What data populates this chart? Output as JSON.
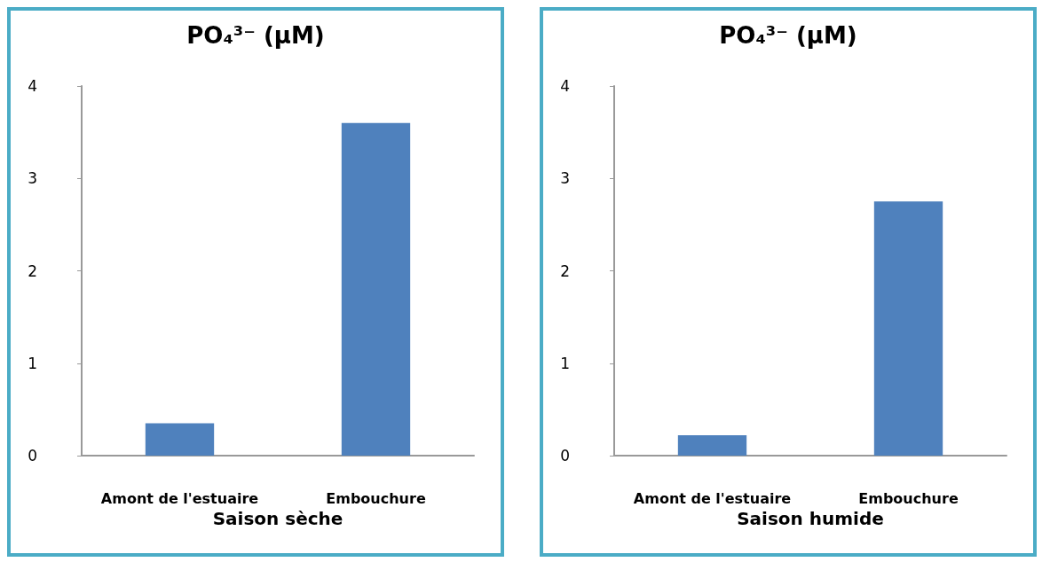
{
  "chart_data": [
    {
      "type": "bar",
      "title": "PO₄³⁻ (µM)",
      "xlabel": "Saison sèche",
      "categories": [
        "Amont de l'estuaire",
        "Embouchure"
      ],
      "values": [
        0.35,
        3.6
      ],
      "color": "#4f81bd",
      "ylim": [
        0,
        4
      ],
      "yticks": [
        0,
        1,
        2,
        3,
        4
      ],
      "grid": false
    },
    {
      "type": "bar",
      "title": "PO₄³⁻ (µM)",
      "xlabel": "Saison humide",
      "categories": [
        "Amont de l'estuaire",
        "Embouchure"
      ],
      "values": [
        0.22,
        2.75
      ],
      "color": "#4f81bd",
      "ylim": [
        0,
        4
      ],
      "yticks": [
        0,
        1,
        2,
        3,
        4
      ],
      "grid": false
    }
  ]
}
